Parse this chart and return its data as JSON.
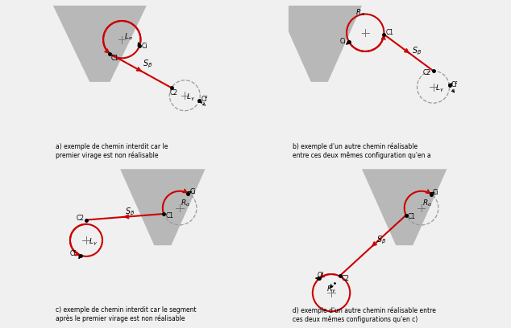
{
  "bg_color": "#f0f0f0",
  "panel_bg": "#ffffff",
  "gray_color": "#b8b8b8",
  "red_color": "#cc0000",
  "dashed_color": "#999999",
  "captions": [
    "a) exemple de chemin interdit car le\npremier virage est non réalisable",
    "b) exemple d'un autre chemin réalisable\nentre ces deux mêmes configuration qu'en a",
    "c) exemple de chemin interdit car le segment\naprès le premier virage est non réalisable",
    "d) exemple d'un autre chemin réalisable entre\nces deux mêmes configurations qu'en c)"
  ]
}
